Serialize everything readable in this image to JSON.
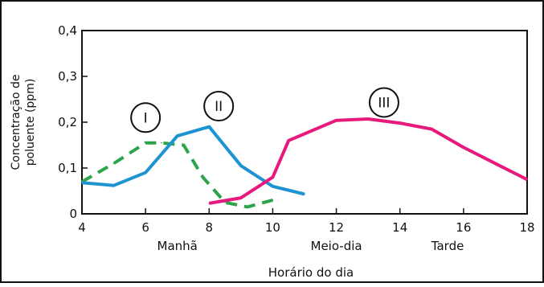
{
  "chart_data": {
    "type": "line",
    "title": "",
    "xlabel": "Horário do dia",
    "ylabel_lines": [
      "Concentração de",
      "poluente (ppm)"
    ],
    "xlim": [
      4,
      18
    ],
    "ylim": [
      0,
      0.4
    ],
    "x_ticks": [
      4,
      6,
      8,
      10,
      12,
      14,
      16,
      18
    ],
    "x_tick_labels": [
      "4",
      "6",
      "8",
      "10",
      "12",
      "14",
      "16",
      "18"
    ],
    "y_ticks": [
      0,
      0.1,
      0.2,
      0.3,
      0.4
    ],
    "y_tick_labels": [
      "0",
      "0,1",
      "0,2",
      "0,3",
      "0,4"
    ],
    "period_labels": [
      {
        "text": "Manhã",
        "x": 7
      },
      {
        "text": "Meio-dia",
        "x": 12
      },
      {
        "text": "Tarde",
        "x": 15.5
      }
    ],
    "grid": false,
    "series": [
      {
        "name": "I",
        "color": "#2ca44a",
        "dashed": true,
        "label_at": [
          6,
          0.21
        ],
        "points": [
          [
            4,
            0.07
          ],
          [
            5,
            0.11
          ],
          [
            6,
            0.155
          ],
          [
            6.5,
            0.155
          ],
          [
            7.2,
            0.15
          ],
          [
            7.8,
            0.08
          ],
          [
            8.5,
            0.025
          ],
          [
            9.2,
            0.015
          ],
          [
            10,
            0.03
          ]
        ]
      },
      {
        "name": "II",
        "color": "#1e93d2",
        "dashed": false,
        "label_at": [
          8.3,
          0.235
        ],
        "points": [
          [
            4,
            0.068
          ],
          [
            5,
            0.062
          ],
          [
            6,
            0.09
          ],
          [
            7,
            0.17
          ],
          [
            8,
            0.19
          ],
          [
            9,
            0.105
          ],
          [
            10,
            0.06
          ],
          [
            11,
            0.043
          ]
        ]
      },
      {
        "name": "III",
        "color": "#e8197d",
        "dashed": false,
        "label_at": [
          13.5,
          0.243
        ],
        "points": [
          [
            8,
            0.023
          ],
          [
            9,
            0.035
          ],
          [
            10,
            0.08
          ],
          [
            10.5,
            0.16
          ],
          [
            12,
            0.204
          ],
          [
            13,
            0.207
          ],
          [
            14,
            0.198
          ],
          [
            15,
            0.185
          ],
          [
            16,
            0.145
          ],
          [
            17,
            0.11
          ],
          [
            18,
            0.075
          ]
        ]
      }
    ]
  }
}
